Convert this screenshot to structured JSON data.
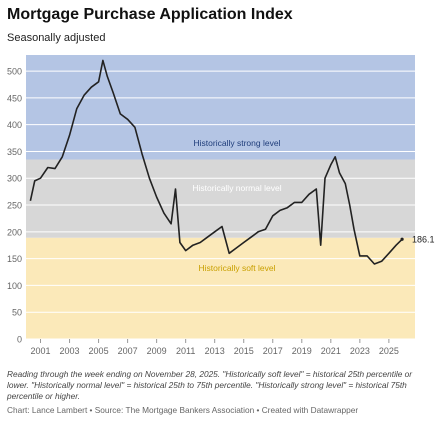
{
  "header": {
    "title": "Mortgage Purchase Application Index",
    "subtitle": "Seasonally adjusted"
  },
  "chart_data": {
    "type": "line",
    "ylim": [
      0,
      530
    ],
    "xlim": [
      2000.0,
      2026.8
    ],
    "y_ticks": [
      0,
      50,
      100,
      150,
      200,
      250,
      300,
      350,
      400,
      450,
      500
    ],
    "x_ticks": [
      2001,
      2003,
      2005,
      2007,
      2009,
      2011,
      2013,
      2015,
      2017,
      2019,
      2021,
      2023,
      2025
    ],
    "grid": true,
    "bands": [
      {
        "label": "Historically soft level",
        "from": 0,
        "to": 189,
        "color": "#fbe9b9",
        "label_color": "#c9a000"
      },
      {
        "label": "Historically normal level",
        "from": 189,
        "to": 335,
        "color": "#d7d7d7",
        "label_color": "#ffffff"
      },
      {
        "label": "Historically strong level",
        "from": 335,
        "to": 530,
        "color": "#b4c5e4",
        "label_color": "#1f3d7a"
      }
    ],
    "end_label": "186.1",
    "series": [
      {
        "color": "#222222",
        "x": [
          2000.3,
          2000.6,
          2001.0,
          2001.5,
          2002.0,
          2002.5,
          2003.0,
          2003.5,
          2004.0,
          2004.5,
          2005.0,
          2005.3,
          2005.6,
          2006.0,
          2006.5,
          2007.0,
          2007.5,
          2008.0,
          2008.5,
          2009.0,
          2009.5,
          2010.0,
          2010.3,
          2010.6,
          2011.0,
          2011.5,
          2012.0,
          2012.5,
          2013.0,
          2013.5,
          2014.0,
          2014.5,
          2015.0,
          2015.5,
          2016.0,
          2016.5,
          2017.0,
          2017.5,
          2018.0,
          2018.5,
          2019.0,
          2019.5,
          2020.0,
          2020.3,
          2020.6,
          2021.0,
          2021.3,
          2021.6,
          2022.0,
          2022.3,
          2022.6,
          2023.0,
          2023.5,
          2024.0,
          2024.5,
          2025.0,
          2025.5,
          2025.91
        ],
        "values": [
          258,
          295,
          300,
          320,
          318,
          340,
          380,
          430,
          455,
          470,
          480,
          520,
          490,
          460,
          420,
          410,
          395,
          345,
          300,
          265,
          235,
          215,
          280,
          180,
          165,
          175,
          180,
          190,
          200,
          210,
          160,
          170,
          180,
          190,
          200,
          205,
          230,
          240,
          245,
          255,
          255,
          270,
          280,
          175,
          300,
          325,
          340,
          310,
          290,
          250,
          205,
          155,
          155,
          140,
          145,
          160,
          175,
          186.1
        ]
      }
    ]
  },
  "notes": "Reading through the week ending on November 28, 2025. \"Historically soft level\" = historical 25th percentile or lower. \"Historically normal level\" = historical 25th to 75th percentile. \"Historically strong level\" = historical 75th percentile or higher.",
  "credits": "Chart: Lance Lambert • Source: The Mortgage Bankers Association • Created with Datawrapper"
}
